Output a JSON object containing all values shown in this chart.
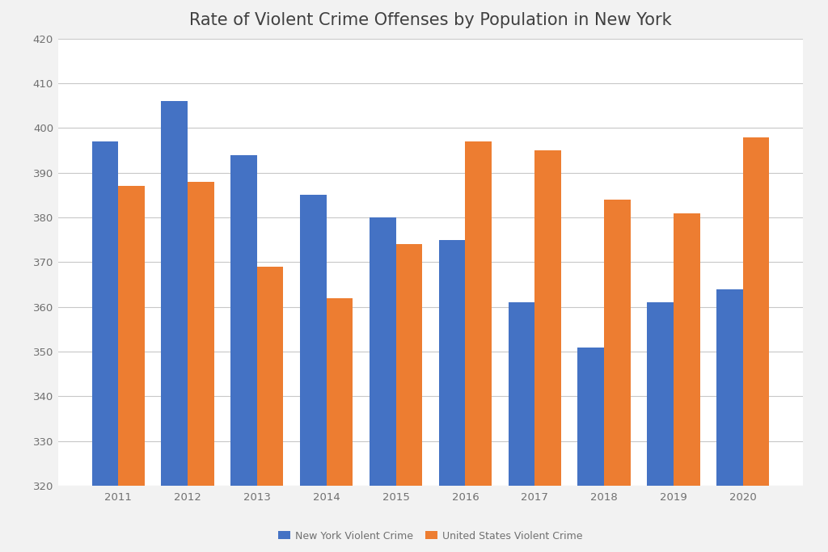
{
  "title": "Rate of Violent Crime Offenses by Population in New York",
  "years": [
    2011,
    2012,
    2013,
    2014,
    2015,
    2016,
    2017,
    2018,
    2019,
    2020
  ],
  "ny_values": [
    397,
    406,
    394,
    385,
    380,
    375,
    361,
    351,
    361,
    364
  ],
  "us_values": [
    387,
    388,
    369,
    362,
    374,
    397,
    395,
    384,
    381,
    398
  ],
  "ny_color": "#4472C4",
  "us_color": "#ED7D31",
  "ny_label": "New York Violent Crime",
  "us_label": "United States Violent Crime",
  "ylim": [
    320,
    420
  ],
  "yticks": [
    320,
    330,
    340,
    350,
    360,
    370,
    380,
    390,
    400,
    410,
    420
  ],
  "fig_background_color": "#F2F2F2",
  "plot_background_color": "#FFFFFF",
  "grid_color": "#C8C8C8",
  "title_fontsize": 15,
  "tick_fontsize": 9.5,
  "legend_fontsize": 9,
  "bar_width": 0.38
}
